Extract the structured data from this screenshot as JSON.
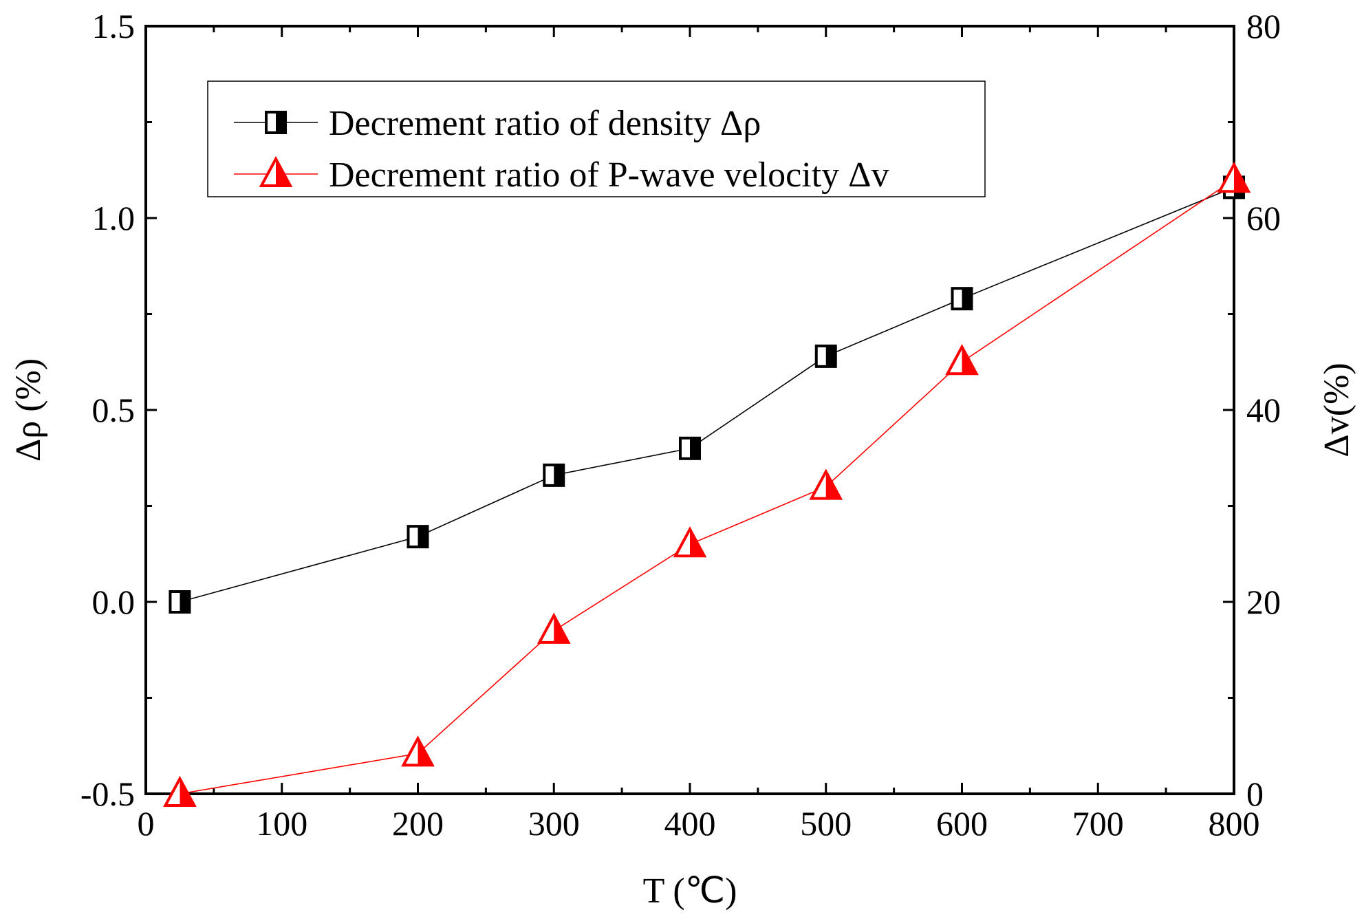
{
  "chart_data": {
    "type": "line",
    "x": [
      25,
      200,
      300,
      400,
      500,
      600,
      800
    ],
    "series": [
      {
        "name": "Decrement ratio of density Δρ",
        "axis": "left",
        "color": "#000000",
        "marker": "half-filled-square",
        "values": [
          0.0,
          0.17,
          0.33,
          0.4,
          0.64,
          0.79,
          1.08
        ]
      },
      {
        "name": "Decrement ratio of P-wave velocity Δv",
        "axis": "right",
        "color": "#ff0000",
        "marker": "half-filled-triangle",
        "values": [
          0.0,
          4.2,
          17.0,
          26.0,
          32.0,
          45.0,
          64.0
        ]
      }
    ],
    "xlabel": "T (℃)",
    "ylabel_left": "Δρ (%)",
    "ylabel_right": "Δv(%)",
    "xlim": [
      0,
      800
    ],
    "ylim_left": [
      -0.5,
      1.5
    ],
    "ylim_right": [
      0,
      80
    ],
    "x_ticks": [
      "0",
      "100",
      "200",
      "300",
      "400",
      "500",
      "600",
      "700",
      "800"
    ],
    "y_left_ticks": [
      "-0.5",
      "0.0",
      "0.5",
      "1.0",
      "1.5"
    ],
    "y_right_ticks": [
      "0",
      "20",
      "40",
      "60",
      "80"
    ],
    "legend_position": "top-left",
    "grid": false
  }
}
